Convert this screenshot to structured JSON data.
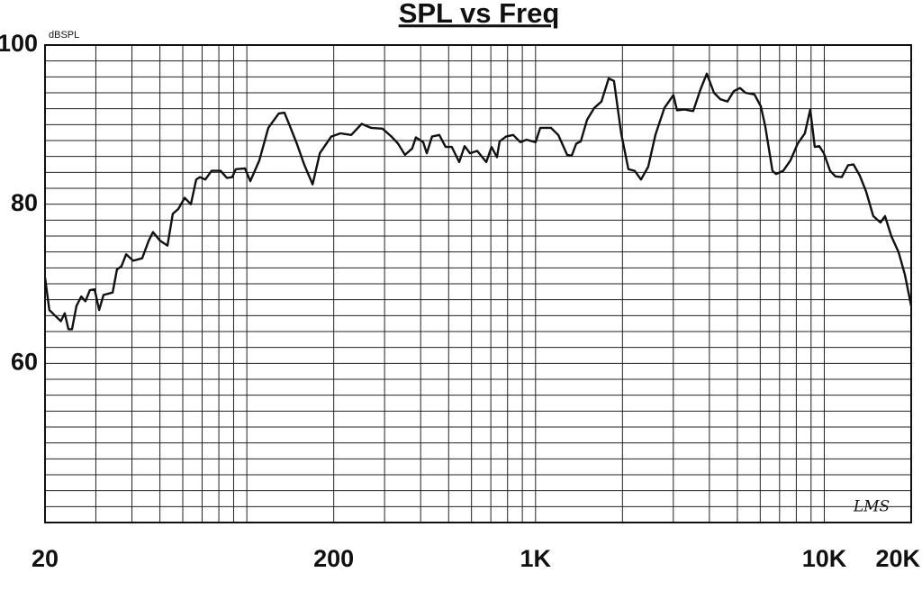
{
  "chart_data": {
    "type": "line",
    "title": "SPL vs Freq",
    "y_label": "dBSPL",
    "annotation": "LMS",
    "log_x": true,
    "grid": true,
    "color": "#111111",
    "xlim": [
      20,
      20000
    ],
    "ylim": [
      40,
      100
    ],
    "xticks": [
      20,
      200,
      {
        "value": 1000,
        "label": "1K"
      },
      {
        "value": 10000,
        "label": "10K"
      },
      {
        "value": 20000,
        "label": "20K"
      }
    ],
    "yticks": [
      60,
      80,
      100
    ],
    "xgrid": [
      20,
      30,
      40,
      50,
      60,
      70,
      80,
      90,
      100,
      200,
      300,
      400,
      500,
      600,
      700,
      800,
      900,
      1000,
      2000,
      3000,
      4000,
      5000,
      6000,
      7000,
      8000,
      9000,
      10000,
      20000
    ],
    "ygrid": [
      40,
      42,
      44,
      46,
      48,
      50,
      52,
      54,
      56,
      58,
      60,
      62,
      64,
      66,
      68,
      70,
      72,
      74,
      76,
      78,
      80,
      82,
      84,
      86,
      88,
      90,
      92,
      94,
      96,
      98,
      100
    ],
    "x": [
      20,
      20.7,
      21.8,
      22.7,
      23.4,
      24.1,
      24.8,
      25.7,
      26.7,
      27.6,
      28.6,
      29.7,
      30.8,
      31.9,
      34.3,
      35.5,
      36.8,
      38.2,
      40.4,
      43.4,
      45.7,
      47.3,
      50.1,
      53.1,
      55.4,
      57.9,
      60.9,
      64,
      66.8,
      68.8,
      71.8,
      75.5,
      81.1,
      85.3,
      89,
      91.6,
      98.5,
      102.8,
      110.5,
      118.7,
      129,
      135,
      141,
      149,
      158,
      169,
      179,
      196,
      211,
      230,
      250,
      269,
      295,
      317,
      334,
      353,
      374,
      385,
      408,
      420,
      438,
      464,
      488,
      513,
      544,
      568,
      593,
      628,
      675,
      704,
      735,
      751,
      790,
      837,
      886,
      931,
      1001,
      1038,
      1131,
      1198,
      1287,
      1334,
      1383,
      1434,
      1508,
      1597,
      1691,
      1791,
      1869,
      1980,
      2097,
      2205,
      2319,
      2456,
      2601,
      2794,
      3003,
      3090,
      3273,
      3517,
      3724,
      3918,
      4149,
      4363,
      4620,
      4858,
      5108,
      5334,
      5731,
      6027,
      6247,
      6614,
      6806,
      7210,
      7633,
      8088,
      8564,
      8943,
      9270,
      9610,
      9963,
      10473,
      10934,
      11498,
      12090,
      12622,
      13271,
      13955,
      14781,
      15654,
      16226,
      17064,
      18072,
      19011,
      20000
    ],
    "values": [
      70.8,
      66.7,
      65.9,
      65.3,
      66.3,
      64.3,
      64.3,
      67.2,
      68.4,
      67.8,
      69.2,
      69.3,
      66.7,
      68.6,
      68.9,
      71.8,
      72.2,
      73.7,
      72.9,
      73.2,
      75.4,
      76.5,
      75.4,
      74.8,
      78.8,
      79.4,
      80.8,
      80.0,
      83.1,
      83.4,
      83.1,
      84.2,
      84.2,
      83.3,
      83.4,
      84.4,
      84.5,
      82.9,
      85.5,
      89.6,
      91.4,
      91.5,
      89.8,
      87.6,
      85.0,
      82.5,
      86.4,
      88.5,
      88.9,
      88.7,
      90.1,
      89.6,
      89.5,
      88.5,
      87.6,
      86.2,
      87.0,
      88.4,
      87.8,
      86.4,
      88.5,
      88.7,
      87.2,
      87.2,
      85.3,
      87.3,
      86.4,
      86.7,
      85.3,
      87.2,
      85.9,
      87.9,
      88.5,
      88.7,
      87.8,
      88.1,
      87.8,
      89.6,
      89.6,
      88.7,
      86.2,
      86.1,
      87.6,
      87.9,
      90.6,
      92.1,
      92.9,
      95.8,
      95.5,
      88.9,
      84.4,
      84.2,
      83.1,
      84.7,
      88.7,
      92.1,
      93.7,
      91.8,
      91.9,
      91.7,
      94.4,
      96.4,
      94.0,
      93.2,
      92.9,
      94.2,
      94.6,
      94.0,
      93.8,
      92.3,
      89.8,
      84.2,
      83.8,
      84.2,
      85.5,
      87.6,
      88.9,
      91.9,
      87.2,
      87.3,
      86.4,
      84.2,
      83.5,
      83.4,
      84.9,
      85.0,
      83.6,
      81.6,
      78.5,
      77.7,
      78.5,
      76.0,
      74.0,
      71.2,
      67.2
    ]
  }
}
